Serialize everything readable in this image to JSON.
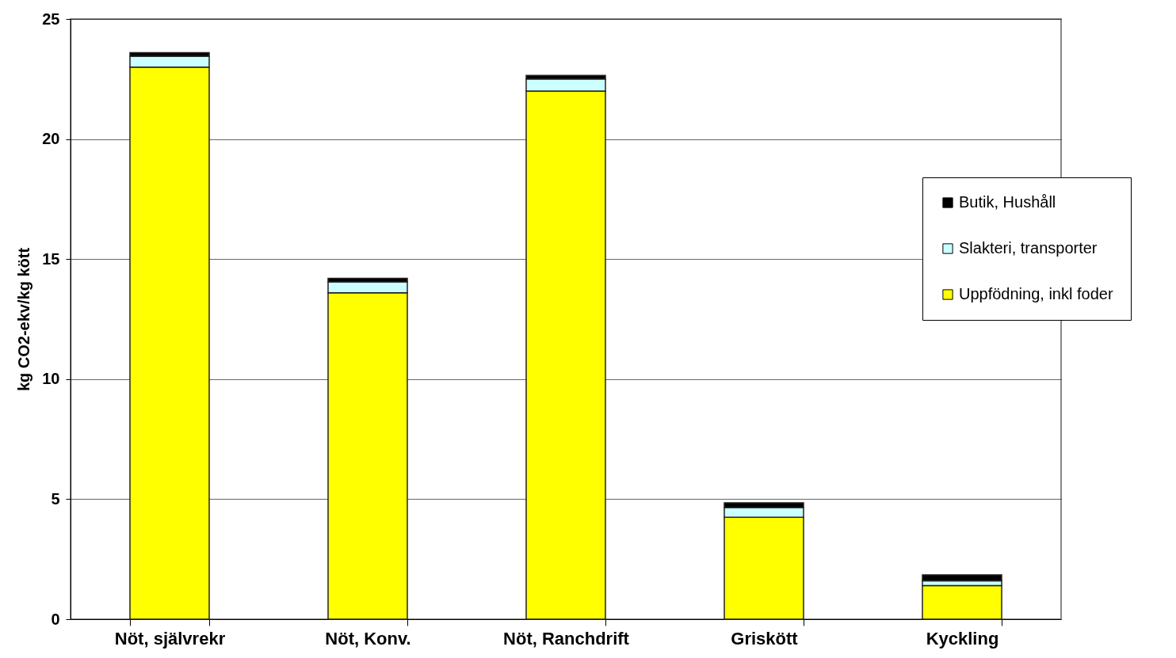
{
  "chart_data": {
    "type": "bar",
    "stacked": true,
    "ylabel": "kg CO2-ekv/kg kött",
    "categories": [
      "Nöt, självrekr",
      "Nöt, Konv.",
      "Nöt, Ranchdrift",
      "Griskött",
      "Kyckling"
    ],
    "series": [
      {
        "name": "Uppfödning, inkl foder",
        "color": "#ffff00",
        "values": [
          23.0,
          13.6,
          22.0,
          4.25,
          1.4
        ]
      },
      {
        "name": "Slakteri, transporter",
        "color": "#ccffff",
        "values": [
          0.45,
          0.45,
          0.5,
          0.4,
          0.2
        ]
      },
      {
        "name": "Butik, Hushåll",
        "color": "#000000",
        "values": [
          0.15,
          0.15,
          0.15,
          0.2,
          0.25
        ]
      }
    ],
    "ylim": [
      0,
      25
    ],
    "yticks": [
      0,
      5,
      10,
      15,
      20,
      25
    ],
    "grid": "y",
    "legend": "right"
  }
}
